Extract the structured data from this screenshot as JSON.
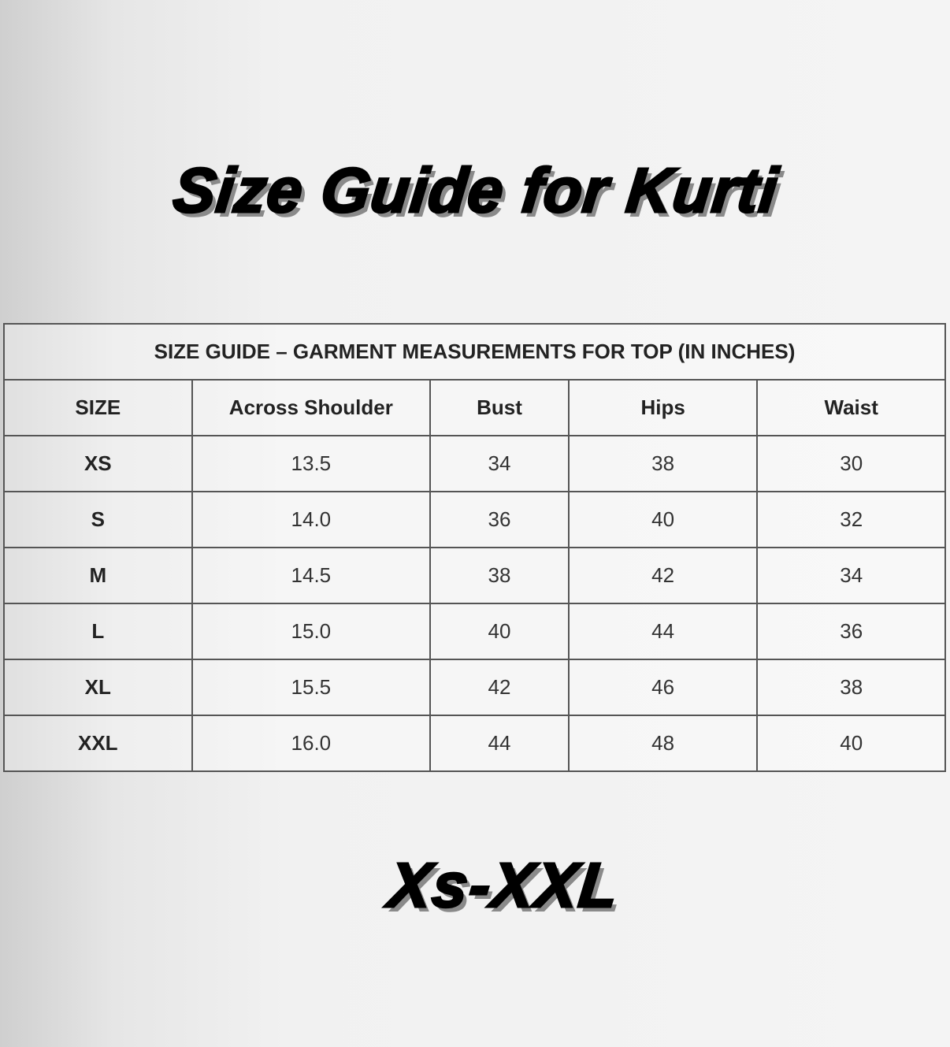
{
  "title": "Size Guide for Kurti",
  "range": "Xs-XXL",
  "table": {
    "caption": "SIZE GUIDE – GARMENT MEASUREMENTS FOR TOP (IN INCHES)",
    "headers": [
      "SIZE",
      "Across Shoulder",
      "Bust",
      "Hips",
      "Waist"
    ],
    "rows": [
      [
        "XS",
        "13.5",
        "34",
        "38",
        "30"
      ],
      [
        "S",
        "14.0",
        "36",
        "40",
        "32"
      ],
      [
        "M",
        "14.5",
        "38",
        "42",
        "34"
      ],
      [
        "L",
        "15.0",
        "40",
        "44",
        "36"
      ],
      [
        "XL",
        "15.5",
        "42",
        "46",
        "38"
      ],
      [
        "XXL",
        "16.0",
        "44",
        "48",
        "40"
      ]
    ]
  }
}
